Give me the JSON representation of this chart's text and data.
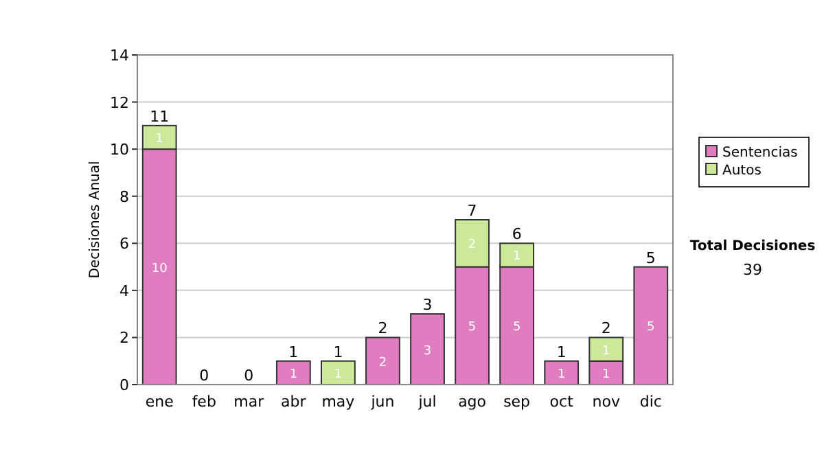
{
  "chart_data": {
    "type": "bar",
    "stacked": true,
    "ylabel": "Decisiones Anual",
    "categories": [
      "ene",
      "feb",
      "mar",
      "abr",
      "may",
      "jun",
      "jul",
      "ago",
      "sep",
      "oct",
      "nov",
      "dic"
    ],
    "series": [
      {
        "name": "Sentencias",
        "color": "#e07cc0",
        "values": [
          10,
          0,
          0,
          1,
          0,
          2,
          3,
          5,
          5,
          1,
          1,
          5
        ],
        "value_labels": [
          "10",
          null,
          null,
          "1",
          null,
          "2",
          "3",
          "5",
          "5",
          "1",
          "1",
          "5"
        ]
      },
      {
        "name": "Autos",
        "color": "#cce89a",
        "values": [
          1,
          0,
          0,
          0,
          1,
          0,
          0,
          2,
          1,
          0,
          1,
          0
        ],
        "value_labels": [
          "1",
          null,
          null,
          null,
          "1",
          null,
          null,
          "2",
          "1",
          null,
          "1",
          null
        ]
      }
    ],
    "totals": [
      "11",
      "0",
      "0",
      "1",
      "1",
      "2",
      "3",
      "7",
      "6",
      "1",
      "2",
      "5"
    ],
    "ylim": [
      0,
      14
    ],
    "yticks": [
      0,
      2,
      4,
      6,
      8,
      10,
      12,
      14
    ],
    "grid": "y",
    "legend": "right",
    "annotations": [
      "Total Decisiones",
      "39"
    ]
  }
}
